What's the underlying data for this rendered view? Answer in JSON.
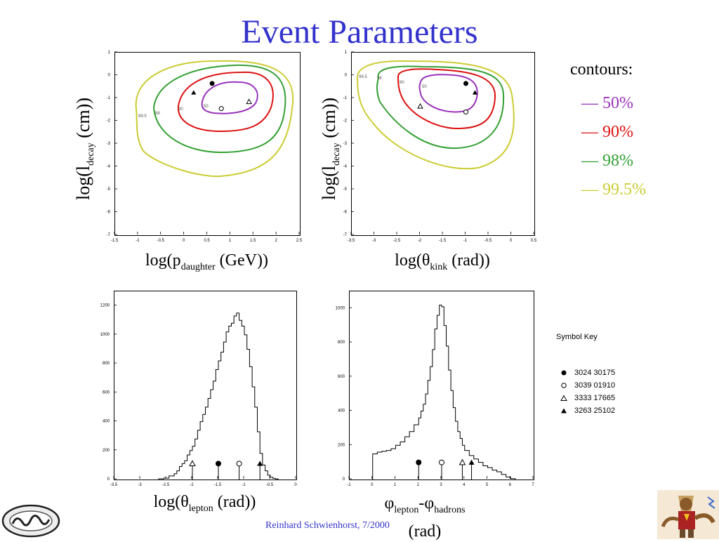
{
  "slide": {
    "title": "Event Parameters",
    "footer": "Reinhard Schwienhorst, 7/2000"
  },
  "colors": {
    "title": "#3333cc",
    "c50": "#9933bb",
    "c90": "#dd1111",
    "c98": "#33a033",
    "c995": "#cccc33"
  },
  "legend": {
    "title": "contours:",
    "items": [
      {
        "label": "— 50%",
        "color": "#9933bb"
      },
      {
        "label": "— 90%",
        "color": "#dd1111"
      },
      {
        "label": "— 98%",
        "color": "#33a033"
      },
      {
        "label": "— 99.5%",
        "color": "#cccc33"
      }
    ]
  },
  "symbol_key": {
    "title": "Symbol Key",
    "entries": [
      {
        "label": "3024 30175",
        "symbol": "filled-circle"
      },
      {
        "label": "3039 01910",
        "symbol": "open-circle"
      },
      {
        "label": "3333 17665",
        "symbol": "open-triangle"
      },
      {
        "label": "3263 25102",
        "symbol": "filled-triangle"
      }
    ]
  },
  "axis_labels": {
    "plot1_y": {
      "pre": "log(l",
      "sub": "decay",
      "post": " (cm))"
    },
    "plot1_x": {
      "pre": "log(p",
      "sub": "daughter",
      "post": " (GeV))"
    },
    "plot2_y": {
      "pre": "log(l",
      "sub": "decay",
      "post": " (cm))"
    },
    "plot2_x": {
      "pre": "log(θ",
      "sub": "kink",
      "post": " (rad))"
    },
    "plot3_x": {
      "pre": "log(θ",
      "sub": "lepton",
      "post": " (rad))"
    },
    "plot4_x": {
      "a": "φ",
      "a_sub": "lepton",
      "mid": "-φ",
      "b_sub": "hadrons",
      "post": "(rad)"
    }
  },
  "chart_data": [
    {
      "type": "contour",
      "id": "p1",
      "xlim": [
        -1.5,
        2.5
      ],
      "ylim": [
        -7,
        1
      ],
      "xticks": [
        "-1.5",
        "-1",
        "-0.5",
        "0",
        "0.5",
        "1",
        "1.5",
        "2",
        "2.5"
      ],
      "yticks": [
        "1",
        "0",
        "-1",
        "-2",
        "-3",
        "-4",
        "-5",
        "-6",
        "-7"
      ],
      "contour_labels": [
        "99.5",
        "98",
        "90",
        "50"
      ],
      "markers": [
        {
          "symbol": "filled-circle",
          "x": 0.6,
          "y": -0.35
        },
        {
          "symbol": "filled-triangle",
          "x": 0.2,
          "y": -0.75
        },
        {
          "symbol": "open-circle",
          "x": 0.8,
          "y": -1.45
        },
        {
          "symbol": "open-triangle",
          "x": 1.4,
          "y": -1.15
        }
      ]
    },
    {
      "type": "contour",
      "id": "p2",
      "xlim": [
        -3.5,
        0.5
      ],
      "ylim": [
        -7,
        1
      ],
      "xticks": [
        "-3.5",
        "-3",
        "-2.5",
        "-2",
        "-1.5",
        "-1",
        "-0.5",
        "0",
        "0.5"
      ],
      "yticks": [
        "1",
        "0",
        "-1",
        "-2",
        "-3",
        "-4",
        "-5",
        "-6",
        "-7"
      ],
      "contour_labels": [
        "99.5",
        "98",
        "90",
        "50"
      ],
      "markers": [
        {
          "symbol": "filled-circle",
          "x": -1.0,
          "y": -0.35
        },
        {
          "symbol": "filled-triangle",
          "x": -0.8,
          "y": -0.75
        },
        {
          "symbol": "open-triangle",
          "x": -2.0,
          "y": -1.35
        },
        {
          "symbol": "open-circle",
          "x": -1.0,
          "y": -1.6
        }
      ]
    },
    {
      "type": "histogram",
      "id": "p3",
      "xlim": [
        -3.5,
        0
      ],
      "ylim": [
        0,
        1300
      ],
      "xticks": [
        "-3.5",
        "-3",
        "-2.5",
        "-2",
        "-1.5",
        "-1",
        "-0.5",
        "0"
      ],
      "yticks": [
        "0",
        "200",
        "400",
        "600",
        "800",
        "1000",
        "1200"
      ],
      "bin_edges": [
        -2.65,
        -2.55,
        -2.45,
        -2.35,
        -2.3,
        -2.25,
        -2.2,
        -2.15,
        -2.1,
        -2.05,
        -2.0,
        -1.95,
        -1.9,
        -1.85,
        -1.8,
        -1.75,
        -1.7,
        -1.65,
        -1.6,
        -1.55,
        -1.5,
        -1.45,
        -1.4,
        -1.35,
        -1.3,
        -1.25,
        -1.2,
        -1.15,
        -1.1,
        -1.05,
        -1.0,
        -0.95,
        -0.9,
        -0.85,
        -0.8,
        -0.75,
        -0.7,
        -0.65,
        -0.6,
        -0.55,
        -0.5,
        -0.45,
        -0.4,
        -0.35
      ],
      "values": [
        5,
        10,
        25,
        40,
        60,
        90,
        110,
        130,
        170,
        200,
        230,
        280,
        340,
        400,
        450,
        500,
        560,
        620,
        680,
        760,
        820,
        880,
        950,
        1020,
        1060,
        1080,
        1130,
        1150,
        1100,
        1060,
        1000,
        900,
        780,
        640,
        500,
        330,
        180,
        100,
        60,
        30,
        15,
        8,
        4
      ],
      "markers": [
        {
          "symbol": "open-triangle",
          "x": -2.0,
          "y": 110
        },
        {
          "symbol": "filled-circle",
          "x": -1.5,
          "y": 110
        },
        {
          "symbol": "open-circle",
          "x": -1.1,
          "y": 110
        },
        {
          "symbol": "filled-triangle",
          "x": -0.7,
          "y": 110
        }
      ]
    },
    {
      "type": "histogram",
      "id": "p4",
      "xlim": [
        -1,
        7
      ],
      "ylim": [
        0,
        1100
      ],
      "xticks": [
        "-1",
        "0",
        "1",
        "2",
        "3",
        "4",
        "5",
        "6",
        "7"
      ],
      "yticks": [
        "0",
        "200",
        "400",
        "600",
        "800",
        "1000"
      ],
      "bin_edges": [
        0.0,
        0.2,
        0.4,
        0.6,
        0.8,
        1.0,
        1.2,
        1.4,
        1.6,
        1.8,
        2.0,
        2.1,
        2.2,
        2.3,
        2.4,
        2.5,
        2.6,
        2.7,
        2.8,
        2.9,
        3.0,
        3.1,
        3.2,
        3.3,
        3.4,
        3.5,
        3.6,
        3.7,
        3.8,
        3.9,
        4.0,
        4.2,
        4.4,
        4.6,
        4.8,
        5.0,
        5.2,
        5.4,
        5.6,
        5.8,
        6.0,
        6.2
      ],
      "values": [
        150,
        160,
        165,
        170,
        180,
        200,
        220,
        250,
        280,
        320,
        360,
        400,
        440,
        500,
        580,
        660,
        760,
        880,
        960,
        1020,
        1010,
        900,
        780,
        640,
        520,
        420,
        340,
        280,
        240,
        200,
        170,
        140,
        120,
        100,
        80,
        70,
        55,
        45,
        30,
        15,
        5
      ],
      "markers": [
        {
          "symbol": "filled-circle",
          "x": 2.0,
          "y": 100
        },
        {
          "symbol": "open-circle",
          "x": 3.0,
          "y": 100
        },
        {
          "symbol": "open-triangle",
          "x": 3.9,
          "y": 100
        },
        {
          "symbol": "filled-triangle",
          "x": 4.3,
          "y": 100
        }
      ]
    }
  ]
}
